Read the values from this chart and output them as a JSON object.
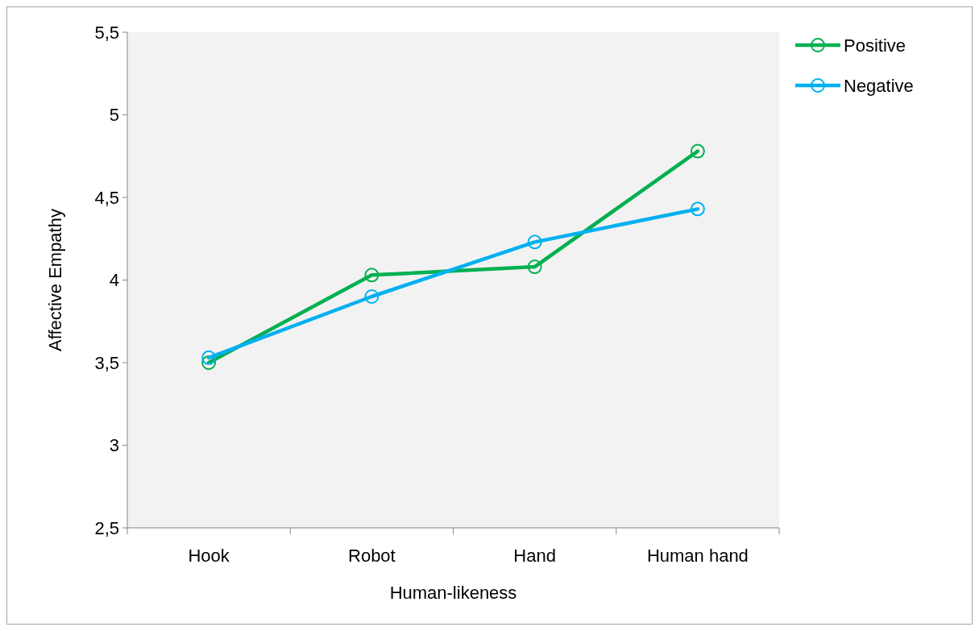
{
  "chart_data": {
    "type": "line",
    "xlabel": "Human-likeness",
    "ylabel": "Affective Empathy",
    "categories": [
      "Hook",
      "Robot",
      "Hand",
      "Human hand"
    ],
    "series": [
      {
        "name": "Positive",
        "color": "#00b050",
        "values": [
          3.5,
          4.03,
          4.08,
          4.78
        ]
      },
      {
        "name": "Negative",
        "color": "#00b0f0",
        "values": [
          3.53,
          3.9,
          4.23,
          4.43
        ]
      }
    ],
    "ylim": [
      2.5,
      5.5
    ],
    "yticks": [
      {
        "value": 2.5,
        "label": "2,5"
      },
      3,
      {
        "value": 3.5,
        "label": "3,5"
      },
      4,
      {
        "value": 4.5,
        "label": "4,5"
      },
      5,
      {
        "value": 5.5,
        "label": "5,5"
      }
    ],
    "grid": false,
    "legend": "top right",
    "marker": "circle",
    "line_style": "solid"
  }
}
